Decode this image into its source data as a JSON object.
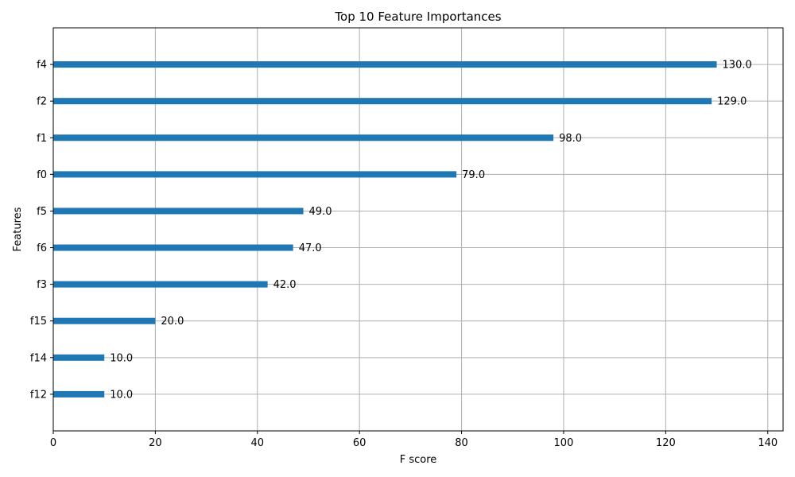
{
  "chart_data": {
    "type": "bar",
    "orientation": "horizontal",
    "title": "Top 10 Feature Importances",
    "xlabel": "F score",
    "ylabel": "Features",
    "categories": [
      "f4",
      "f2",
      "f1",
      "f0",
      "f5",
      "f6",
      "f3",
      "f15",
      "f14",
      "f12"
    ],
    "values": [
      130.0,
      129.0,
      98.0,
      79.0,
      49.0,
      47.0,
      42.0,
      20.0,
      10.0,
      10.0
    ],
    "value_labels": [
      "130.0",
      "129.0",
      "98.0",
      "79.0",
      "49.0",
      "47.0",
      "42.0",
      "20.0",
      "10.0",
      "10.0"
    ],
    "xlim": [
      0,
      143
    ],
    "xticks": [
      0,
      20,
      40,
      60,
      80,
      100,
      120,
      140
    ],
    "xtick_labels": [
      "0",
      "20",
      "40",
      "60",
      "80",
      "100",
      "120",
      "140"
    ],
    "grid": true,
    "bar_color": "#1f77b4"
  }
}
